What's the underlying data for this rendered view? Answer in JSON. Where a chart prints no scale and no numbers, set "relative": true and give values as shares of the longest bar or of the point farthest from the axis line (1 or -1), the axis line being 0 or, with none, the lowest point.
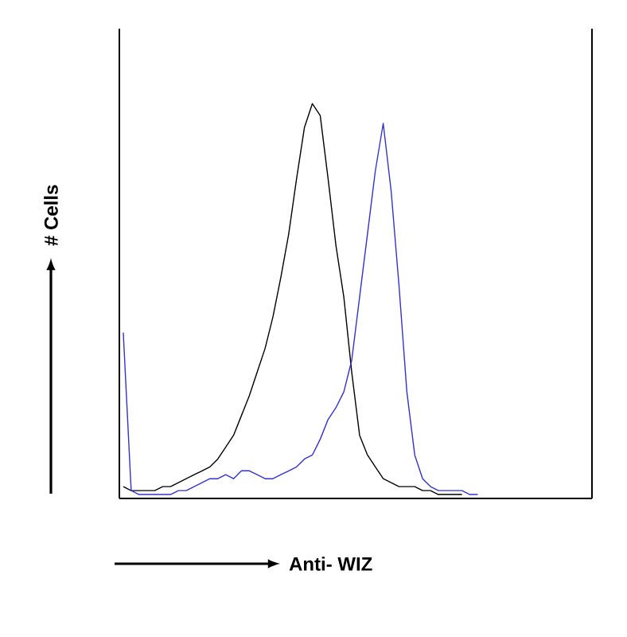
{
  "chart_data": {
    "type": "line",
    "relative": true,
    "xlabel": "Anti- WIZ",
    "ylabel": "# Cells",
    "categories": [
      null,
      null,
      null,
      null,
      null,
      null,
      null,
      null,
      null,
      null,
      null,
      null,
      null,
      null,
      null,
      null,
      null,
      null,
      null,
      null,
      null,
      null,
      null,
      null,
      null,
      null,
      null,
      null,
      null,
      null,
      null,
      null,
      null,
      null,
      null,
      null,
      null,
      null,
      null,
      null,
      null,
      null,
      null,
      null,
      null,
      null,
      null,
      null,
      null,
      null,
      null,
      null,
      null,
      null,
      null,
      null,
      null,
      null,
      null,
      null
    ],
    "series": [
      {
        "color": "#000000",
        "values": [
          0.03,
          0.02,
          0.02,
          0.02,
          0.02,
          0.03,
          0.03,
          0.04,
          0.05,
          0.06,
          0.07,
          0.08,
          0.1,
          0.13,
          0.16,
          0.21,
          0.26,
          0.32,
          0.38,
          0.46,
          0.56,
          0.67,
          0.81,
          0.94,
          1,
          0.97,
          0.81,
          0.64,
          0.51,
          0.32,
          0.16,
          0.11,
          0.08,
          0.05,
          0.04,
          0.03,
          0.03,
          0.03,
          0.02,
          0.02,
          0.01,
          0.01,
          0.01,
          0.01,
          null,
          null,
          null,
          null,
          null,
          null,
          null,
          null,
          null,
          null,
          null,
          null,
          null,
          null,
          null,
          null
        ]
      },
      {
        "color": "#3333cc",
        "values": [
          0.42,
          0.02,
          0.01,
          0.01,
          0.01,
          0.01,
          0.01,
          0.02,
          0.02,
          0.03,
          0.04,
          0.05,
          0.05,
          0.06,
          0.05,
          0.07,
          0.07,
          0.06,
          0.05,
          0.05,
          0.06,
          0.07,
          0.08,
          0.1,
          0.11,
          0.15,
          0.2,
          0.23,
          0.27,
          0.35,
          0.51,
          0.67,
          0.83,
          0.95,
          0.78,
          0.54,
          0.27,
          0.11,
          0.05,
          0.03,
          0.02,
          0.02,
          0.02,
          0.02,
          0.01,
          0.01,
          null,
          null,
          null,
          null,
          null,
          null,
          null,
          null,
          null,
          null,
          null,
          null,
          null,
          null
        ]
      }
    ]
  }
}
